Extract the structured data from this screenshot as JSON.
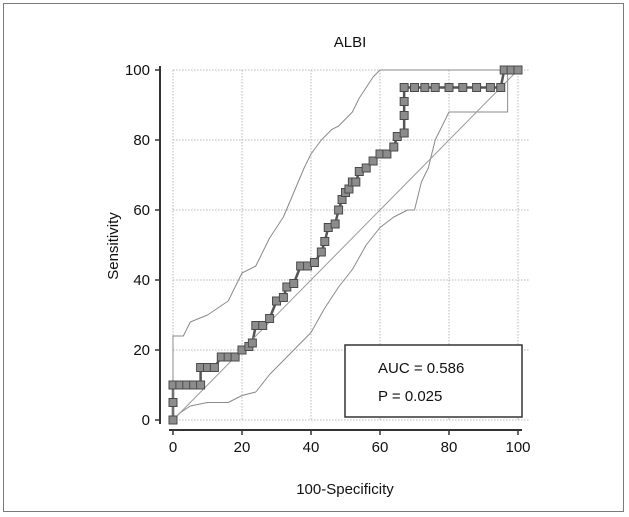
{
  "chart_data": {
    "type": "line",
    "title": "ALBI",
    "xlabel": "100-Specificity",
    "ylabel": "Sensitivity",
    "xlim": [
      0,
      100
    ],
    "ylim": [
      0,
      100
    ],
    "x_ticks": [
      "0",
      "20",
      "40",
      "60",
      "80",
      "100"
    ],
    "y_ticks": [
      "0",
      "20",
      "40",
      "60",
      "80",
      "100"
    ],
    "grid": true,
    "annotation": {
      "auc": "AUC = 0.586",
      "p": "P = 0.025"
    },
    "series": [
      {
        "role": "roc_curve",
        "style": "step-markers",
        "points": [
          [
            0,
            0
          ],
          [
            0,
            5
          ],
          [
            0,
            10
          ],
          [
            2,
            10
          ],
          [
            4,
            10
          ],
          [
            6,
            10
          ],
          [
            8,
            10
          ],
          [
            8,
            15
          ],
          [
            10,
            15
          ],
          [
            12,
            15
          ],
          [
            14,
            18
          ],
          [
            16,
            18
          ],
          [
            18,
            18
          ],
          [
            20,
            20
          ],
          [
            22,
            21
          ],
          [
            23,
            22
          ],
          [
            24,
            27
          ],
          [
            26,
            27
          ],
          [
            28,
            29
          ],
          [
            30,
            34
          ],
          [
            32,
            35
          ],
          [
            33,
            38
          ],
          [
            35,
            39
          ],
          [
            37,
            44
          ],
          [
            39,
            44
          ],
          [
            41,
            45
          ],
          [
            43,
            48
          ],
          [
            44,
            51
          ],
          [
            45,
            55
          ],
          [
            47,
            56
          ],
          [
            48,
            60
          ],
          [
            49,
            63
          ],
          [
            50,
            65
          ],
          [
            51,
            66
          ],
          [
            52,
            68
          ],
          [
            53,
            68
          ],
          [
            54,
            71
          ],
          [
            56,
            72
          ],
          [
            58,
            74
          ],
          [
            60,
            76
          ],
          [
            62,
            76
          ],
          [
            64,
            78
          ],
          [
            65,
            81
          ],
          [
            67,
            82
          ],
          [
            67,
            87
          ],
          [
            67,
            91
          ],
          [
            67,
            95
          ],
          [
            70,
            95
          ],
          [
            73,
            95
          ],
          [
            76,
            95
          ],
          [
            80,
            95
          ],
          [
            84,
            95
          ],
          [
            88,
            95
          ],
          [
            92,
            95
          ],
          [
            95,
            95
          ],
          [
            96,
            100
          ],
          [
            98,
            100
          ],
          [
            100,
            100
          ]
        ]
      },
      {
        "role": "upper_ci",
        "style": "thin",
        "points": [
          [
            0,
            0
          ],
          [
            0,
            24
          ],
          [
            3,
            24
          ],
          [
            5,
            28
          ],
          [
            10,
            30
          ],
          [
            16,
            34
          ],
          [
            20,
            42
          ],
          [
            24,
            44
          ],
          [
            28,
            52
          ],
          [
            32,
            58
          ],
          [
            35,
            65
          ],
          [
            38,
            72
          ],
          [
            40,
            76
          ],
          [
            43,
            80
          ],
          [
            46,
            83
          ],
          [
            48,
            84
          ],
          [
            50,
            86
          ],
          [
            52,
            88
          ],
          [
            54,
            92
          ],
          [
            56,
            95
          ],
          [
            58,
            98
          ],
          [
            60,
            100
          ],
          [
            100,
            100
          ]
        ]
      },
      {
        "role": "lower_ci",
        "style": "thin",
        "points": [
          [
            0,
            0
          ],
          [
            2,
            2
          ],
          [
            5,
            4
          ],
          [
            10,
            5
          ],
          [
            16,
            5
          ],
          [
            20,
            7
          ],
          [
            24,
            8
          ],
          [
            28,
            13
          ],
          [
            32,
            17
          ],
          [
            35,
            20
          ],
          [
            40,
            25
          ],
          [
            44,
            32
          ],
          [
            48,
            38
          ],
          [
            52,
            43
          ],
          [
            56,
            50
          ],
          [
            60,
            55
          ],
          [
            64,
            58
          ],
          [
            68,
            60
          ],
          [
            70,
            60
          ],
          [
            72,
            68
          ],
          [
            74,
            72
          ],
          [
            76,
            80
          ],
          [
            80,
            88
          ],
          [
            84,
            88
          ],
          [
            90,
            88
          ],
          [
            97,
            88
          ],
          [
            97,
            100
          ],
          [
            100,
            100
          ]
        ]
      },
      {
        "role": "reference",
        "style": "diagonal",
        "points": [
          [
            0,
            0
          ],
          [
            100,
            100
          ]
        ]
      }
    ]
  }
}
